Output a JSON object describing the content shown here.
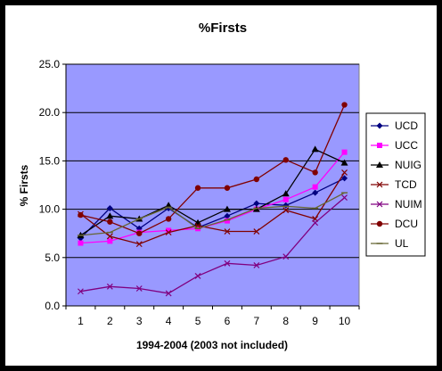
{
  "chart_data": {
    "type": "line",
    "title": "%Firsts",
    "xlabel": "1994-2004 (2003 not included)",
    "ylabel": "% Firsts",
    "categories": [
      "1",
      "2",
      "3",
      "4",
      "5",
      "6",
      "7",
      "8",
      "9",
      "10"
    ],
    "ylim": [
      0,
      25
    ],
    "yticks": [
      "0.0",
      "5.0",
      "10.0",
      "15.0",
      "20.0",
      "25.0"
    ],
    "ytick_values": [
      0,
      5,
      10,
      15,
      20,
      25
    ],
    "grid": true,
    "legend_position": "right",
    "plot_background": "#9999FF",
    "chart_background": "#FFFFFF",
    "series": [
      {
        "name": "UCD",
        "color": "#000080",
        "marker": "diamond",
        "values": [
          7.0,
          10.1,
          8.0,
          10.1,
          8.1,
          9.3,
          10.6,
          10.4,
          11.7,
          13.2
        ]
      },
      {
        "name": "UCC",
        "color": "#FF00FF",
        "marker": "square",
        "values": [
          6.5,
          6.7,
          7.6,
          7.8,
          8.0,
          8.8,
          10.0,
          11.0,
          12.3,
          15.9
        ]
      },
      {
        "name": "NUIG",
        "color": "#000000",
        "marker": "triangle",
        "values": [
          7.3,
          9.3,
          9.0,
          10.4,
          8.6,
          10.0,
          10.0,
          11.6,
          16.2,
          14.8
        ]
      },
      {
        "name": "TCD",
        "color": "#800000",
        "marker": "x",
        "values": [
          9.5,
          7.2,
          6.4,
          7.6,
          8.3,
          7.7,
          7.7,
          9.9,
          9.0,
          13.8
        ]
      },
      {
        "name": "NUIM",
        "color": "#800080",
        "marker": "x",
        "values": [
          1.5,
          2.0,
          1.8,
          1.3,
          3.1,
          4.4,
          4.2,
          5.1,
          8.6,
          11.2
        ]
      },
      {
        "name": "DCU",
        "color": "#800000",
        "marker": "circle",
        "values": [
          9.4,
          8.7,
          7.5,
          9.0,
          12.2,
          12.2,
          13.1,
          15.1,
          13.8,
          20.8
        ]
      },
      {
        "name": "UL",
        "color": "#666633",
        "marker": "dash",
        "values": [
          7.3,
          7.6,
          9.0,
          10.2,
          8.0,
          8.9,
          10.1,
          10.3,
          10.1,
          11.7
        ]
      }
    ]
  }
}
